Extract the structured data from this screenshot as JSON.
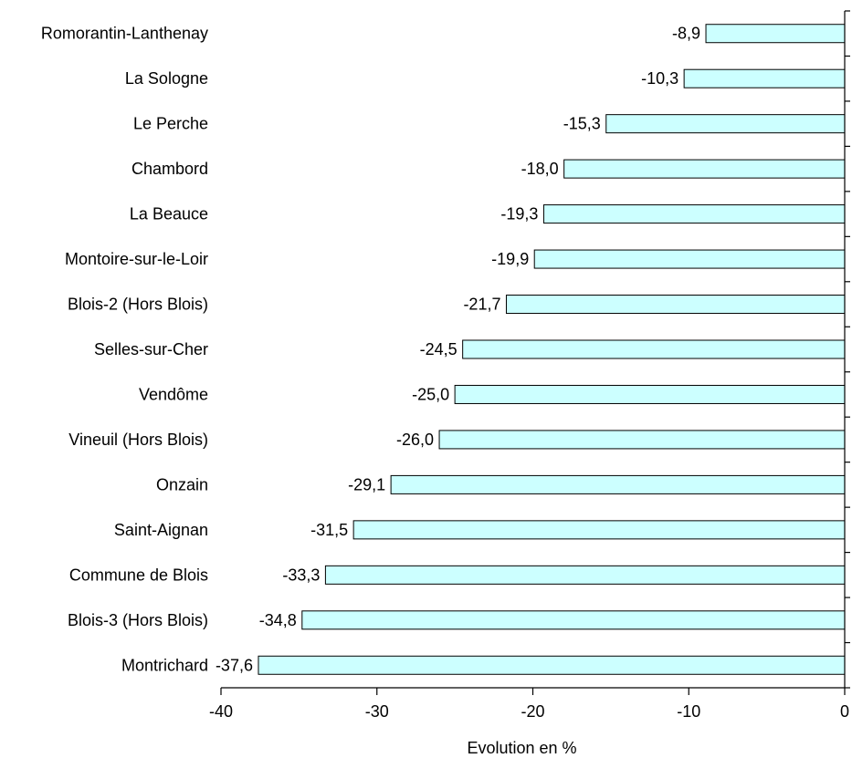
{
  "chart_data": {
    "type": "bar",
    "orientation": "horizontal",
    "categories": [
      "Romorantin-Lanthenay",
      "La Sologne",
      "Le Perche",
      "Chambord",
      "La Beauce",
      "Montoire-sur-le-Loir",
      "Blois-2 (Hors Blois)",
      "Selles-sur-Cher",
      "Vendôme",
      "Vineuil (Hors Blois)",
      "Onzain",
      "Saint-Aignan",
      "Commune de Blois",
      "Blois-3 (Hors Blois)",
      "Montrichard"
    ],
    "values": [
      -8.9,
      -10.3,
      -15.3,
      -18.0,
      -19.3,
      -19.9,
      -21.7,
      -24.5,
      -25.0,
      -26.0,
      -29.1,
      -31.5,
      -33.3,
      -34.8,
      -37.6
    ],
    "value_labels": [
      "-8,9",
      "-10,3",
      "-15,3",
      "-18,0",
      "-19,3",
      "-19,9",
      "-21,7",
      "-24,5",
      "-25,0",
      "-26,0",
      "-29,1",
      "-31,5",
      "-33,3",
      "-34,8",
      "-37,6"
    ],
    "title": "",
    "xlabel": "Evolution en %",
    "ylabel": "",
    "xlim": [
      -40,
      0
    ],
    "xticks": [
      -40,
      -30,
      -20,
      -10,
      0
    ],
    "xtick_labels": [
      "-40",
      "-30",
      "-20",
      "-10",
      "0"
    ],
    "grid": false,
    "legend": "none",
    "bar_color": "#ccffff",
    "bar_edge_color": "#000000"
  }
}
